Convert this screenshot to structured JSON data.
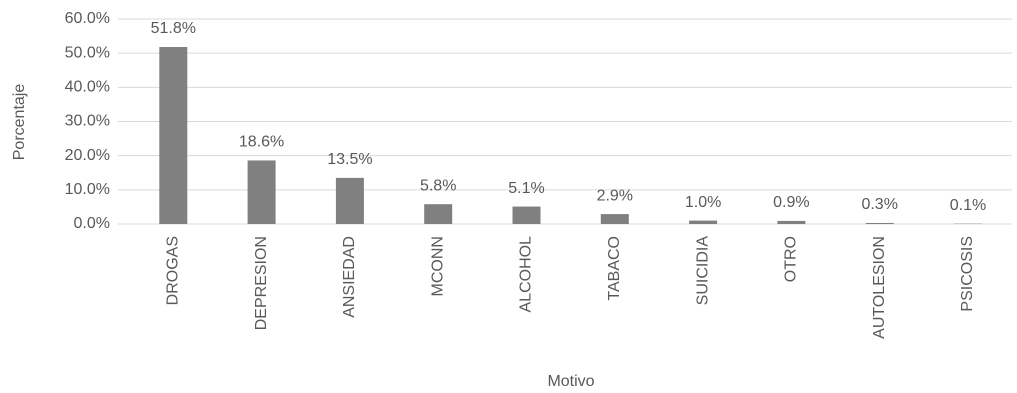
{
  "chart_data": {
    "type": "bar",
    "x_label": "Motivo",
    "y_label": "Porcentaje",
    "categories": [
      "DROGAS",
      "DEPRESION",
      "ANSIEDAD",
      "MCONN",
      "ALCOHOL",
      "TABACO",
      "SUICIDIA",
      "OTRO",
      "AUTOLESION",
      "PSICOSIS"
    ],
    "values": [
      51.8,
      18.6,
      13.5,
      5.8,
      5.1,
      2.9,
      1.0,
      0.9,
      0.3,
      0.1
    ],
    "value_labels": [
      "51.8%",
      "18.6%",
      "13.5%",
      "5.8%",
      "5.1%",
      "2.9%",
      "1.0%",
      "0.9%",
      "0.3%",
      "0.1%"
    ],
    "color": "#808080",
    "ylim": [
      0,
      60
    ],
    "yticks": [
      {
        "value": 0,
        "label": "0.0%"
      },
      {
        "value": 10,
        "label": "10.0%"
      },
      {
        "value": 20,
        "label": "20.0%"
      },
      {
        "value": 30,
        "label": "30.0%"
      },
      {
        "value": 40,
        "label": "40.0%"
      },
      {
        "value": 50,
        "label": "50.0%"
      },
      {
        "value": 60,
        "label": "60.0%"
      }
    ],
    "grid": true
  }
}
